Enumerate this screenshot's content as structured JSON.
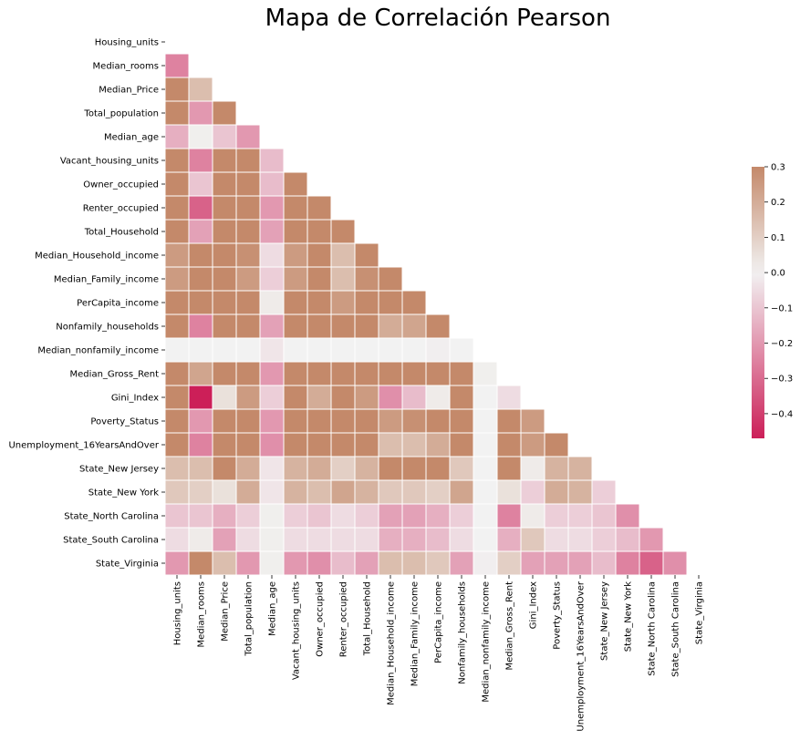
{
  "chart_data": {
    "type": "heatmap",
    "title": "Mapa de Correlación Pearson",
    "mask": "upper-triangle",
    "labels": [
      "Housing_units",
      "Median_rooms",
      "Median_Price",
      "Total_population",
      "Median_age",
      "Vacant_housing_units",
      "Owner_occupied",
      "Renter_occupied",
      "Total_Household",
      "Median_Household_income",
      "Median_Family_income",
      "PerCapita_income",
      "Nonfamily_households",
      "Median_nonfamily_income",
      "Median_Gross_Rent",
      "Gini_Index",
      "Poverty_Status",
      "Unemployment_16YearsAndOver",
      "State_New Jersey",
      "State_New York",
      "State_North Carolina",
      "State_South Carolina",
      "State_Virginia"
    ],
    "values": [
      [],
      [
        -0.25
      ],
      [
        0.3,
        0.15
      ],
      [
        0.3,
        -0.2,
        0.3
      ],
      [
        -0.15,
        0.01,
        -0.1,
        -0.2
      ],
      [
        0.3,
        -0.25,
        0.3,
        0.3,
        -0.12
      ],
      [
        0.3,
        -0.1,
        0.3,
        0.3,
        -0.12,
        0.3
      ],
      [
        0.3,
        -0.32,
        0.3,
        0.3,
        -0.2,
        0.3,
        0.3
      ],
      [
        0.3,
        -0.18,
        0.3,
        0.3,
        -0.18,
        0.3,
        0.3,
        0.3
      ],
      [
        0.25,
        0.3,
        0.3,
        0.28,
        -0.05,
        0.25,
        0.3,
        0.15,
        0.3
      ],
      [
        0.25,
        0.3,
        0.3,
        0.25,
        -0.08,
        0.25,
        0.3,
        0.15,
        0.28,
        0.3
      ],
      [
        0.3,
        0.3,
        0.3,
        0.3,
        0.02,
        0.3,
        0.3,
        0.25,
        0.3,
        0.3,
        0.3
      ],
      [
        0.3,
        -0.25,
        0.3,
        0.3,
        -0.18,
        0.3,
        0.3,
        0.3,
        0.3,
        0.2,
        0.22,
        0.3
      ],
      [
        0.0,
        0.0,
        0.0,
        0.0,
        -0.03,
        0.0,
        0.0,
        0.0,
        0.0,
        0.0,
        0.0,
        -0.01,
        0.0
      ],
      [
        0.3,
        0.22,
        0.3,
        0.3,
        -0.2,
        0.3,
        0.3,
        0.3,
        0.3,
        0.3,
        0.3,
        0.3,
        0.3,
        0.01
      ],
      [
        0.3,
        -0.47,
        0.05,
        0.25,
        -0.08,
        0.3,
        0.2,
        0.3,
        0.25,
        -0.22,
        -0.12,
        0.02,
        0.3,
        0.0,
        -0.05
      ],
      [
        0.3,
        -0.2,
        0.3,
        0.3,
        -0.2,
        0.3,
        0.3,
        0.3,
        0.3,
        0.25,
        0.28,
        0.3,
        0.3,
        0.0,
        0.3,
        0.25
      ],
      [
        0.3,
        -0.25,
        0.3,
        0.3,
        -0.22,
        0.3,
        0.3,
        0.3,
        0.3,
        0.15,
        0.15,
        0.2,
        0.3,
        0.0,
        0.3,
        0.25,
        0.3
      ],
      [
        0.15,
        0.15,
        0.3,
        0.2,
        -0.03,
        0.18,
        0.2,
        0.1,
        0.18,
        0.3,
        0.3,
        0.3,
        0.12,
        0.0,
        0.3,
        0.02,
        0.18,
        0.18
      ],
      [
        0.12,
        0.1,
        0.05,
        0.2,
        -0.03,
        0.18,
        0.15,
        0.22,
        0.18,
        0.12,
        0.12,
        0.1,
        0.22,
        0.0,
        0.05,
        -0.08,
        0.2,
        0.18,
        -0.08
      ],
      [
        -0.1,
        -0.1,
        -0.15,
        -0.08,
        0.01,
        -0.08,
        -0.1,
        -0.05,
        -0.08,
        -0.18,
        -0.18,
        -0.15,
        -0.08,
        0.0,
        -0.25,
        0.02,
        -0.08,
        -0.08,
        -0.1,
        -0.22
      ],
      [
        -0.05,
        0.02,
        -0.18,
        -0.05,
        0.01,
        -0.05,
        -0.05,
        -0.05,
        -0.05,
        -0.15,
        -0.15,
        -0.12,
        -0.05,
        0.0,
        -0.15,
        0.12,
        -0.05,
        -0.05,
        -0.08,
        -0.12,
        -0.2
      ],
      [
        -0.2,
        0.3,
        0.15,
        -0.2,
        0.01,
        -0.2,
        -0.22,
        -0.12,
        -0.18,
        0.15,
        0.15,
        0.12,
        -0.18,
        -0.01,
        0.1,
        -0.18,
        -0.18,
        -0.18,
        -0.12,
        -0.25,
        -0.32,
        -0.22
      ]
    ],
    "colorbar": {
      "min": -0.47,
      "max": 0.3,
      "ticks": [
        0.3,
        0.2,
        0.1,
        0.0,
        -0.1,
        -0.2,
        -0.3,
        -0.4
      ],
      "tick_labels": [
        "0.3",
        "0.2",
        "0.1",
        "0.0",
        "−0.1",
        "−0.2",
        "−0.3",
        "−0.4"
      ]
    },
    "colors": {
      "negative": "#cc1f58",
      "center": "#f2f2f2",
      "positive": "#c4896a",
      "grid": "#ffffff"
    }
  }
}
